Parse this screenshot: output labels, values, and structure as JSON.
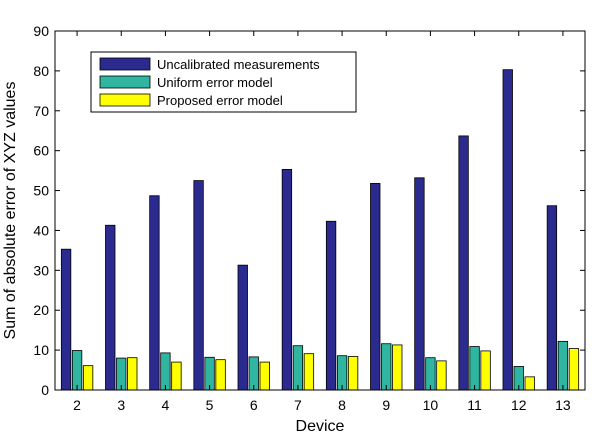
{
  "chart_data": {
    "type": "bar",
    "title": "",
    "xlabel": "Device",
    "ylabel": "Sum of absolute error of XYZ values",
    "categories": [
      "2",
      "3",
      "4",
      "5",
      "6",
      "7",
      "8",
      "9",
      "10",
      "11",
      "12",
      "13"
    ],
    "ylim": [
      0,
      90
    ],
    "yticks": [
      0,
      10,
      20,
      30,
      40,
      50,
      60,
      70,
      80,
      90
    ],
    "grid": false,
    "legend_position": "top-left",
    "series": [
      {
        "name": "Uncalibrated measurements",
        "color": "#2b2b8f",
        "values": [
          35.3,
          41.3,
          48.7,
          52.5,
          31.3,
          55.3,
          42.3,
          51.8,
          53.2,
          63.7,
          80.3,
          46.2
        ]
      },
      {
        "name": "Uniform error model",
        "color": "#2fb5a0",
        "values": [
          9.9,
          8.0,
          9.3,
          8.2,
          8.3,
          11.1,
          8.6,
          11.6,
          8.1,
          10.9,
          5.9,
          12.2
        ]
      },
      {
        "name": "Proposed error model",
        "color": "#ffff00",
        "values": [
          6.1,
          8.1,
          7.0,
          7.6,
          7.0,
          9.1,
          8.4,
          11.3,
          7.3,
          9.8,
          3.3,
          10.4
        ]
      }
    ]
  }
}
